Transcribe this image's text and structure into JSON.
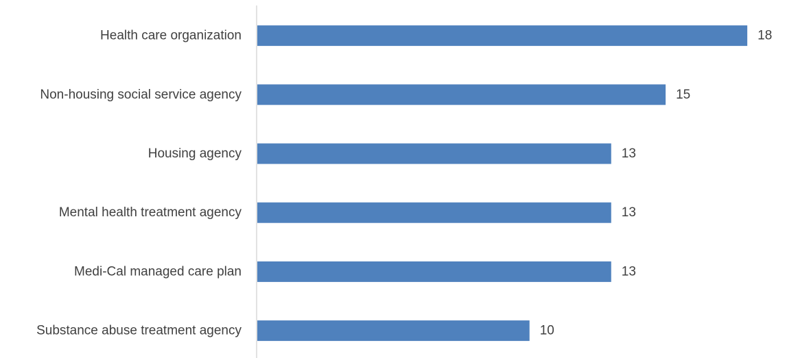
{
  "chart_data": {
    "type": "bar",
    "orientation": "horizontal",
    "categories": [
      "Health care organization",
      "Non-housing social service agency",
      "Housing agency",
      "Mental health treatment agency",
      "Medi-Cal managed care plan",
      "Substance abuse treatment agency"
    ],
    "values": [
      18,
      15,
      13,
      13,
      13,
      10
    ],
    "xlim": [
      0,
      18.4
    ],
    "grid": false,
    "legend": "none",
    "bar_color": "#4f81bd",
    "axis_color": "#d9d9d9",
    "text_color": "#404040"
  }
}
